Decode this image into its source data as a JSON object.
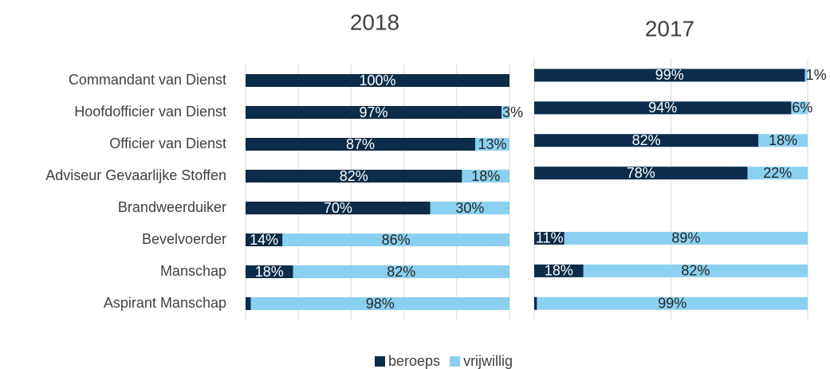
{
  "chart_data": [
    {
      "type": "stacked-bar-horizontal",
      "title": "2018",
      "categories": [
        "Commandant van Dienst",
        "Hoofdofficier van Dienst",
        "Officier van Dienst",
        "Adviseur Gevaarlijke Stoffen",
        "Brandweerduiker",
        "Bevelvoerder",
        "Manschap",
        "Aspirant Manschap"
      ],
      "series": [
        {
          "name": "beroeps",
          "color": "#0b2c4a",
          "values": [
            100,
            97,
            87,
            82,
            70,
            14,
            18,
            2
          ],
          "value_labels": [
            "100%",
            "97%",
            "87%",
            "82%",
            "70%",
            "14%",
            "18%",
            "2%"
          ]
        },
        {
          "name": "vrijwillig",
          "color": "#8bd0f1",
          "values": [
            0,
            3,
            13,
            18,
            30,
            86,
            82,
            98
          ],
          "value_labels": [
            null,
            "3%",
            "13%",
            "18%",
            "30%",
            "86%",
            "82%",
            "98%"
          ]
        }
      ],
      "xlim": [
        0,
        100
      ],
      "xticks": [
        0,
        20,
        40,
        60,
        80,
        100
      ],
      "grid": true
    },
    {
      "type": "stacked-bar-horizontal",
      "title": "2017",
      "series": [
        {
          "color": "#0b2c4a",
          "values": [
            99,
            94,
            82,
            78,
            null,
            11,
            18,
            1
          ],
          "value_labels": [
            "99%",
            "94%",
            "82%",
            "78%",
            null,
            "11%",
            "18%",
            "1%"
          ]
        },
        {
          "color": "#8bd0f1",
          "values": [
            1,
            6,
            18,
            22,
            null,
            89,
            82,
            99
          ],
          "value_labels": [
            "1%",
            "6%",
            "18%",
            "22%",
            null,
            "89%",
            "82%",
            "99%"
          ]
        }
      ],
      "xlim": [
        0,
        100
      ],
      "xticks": [
        0,
        50,
        100
      ],
      "grid": true
    }
  ]
}
